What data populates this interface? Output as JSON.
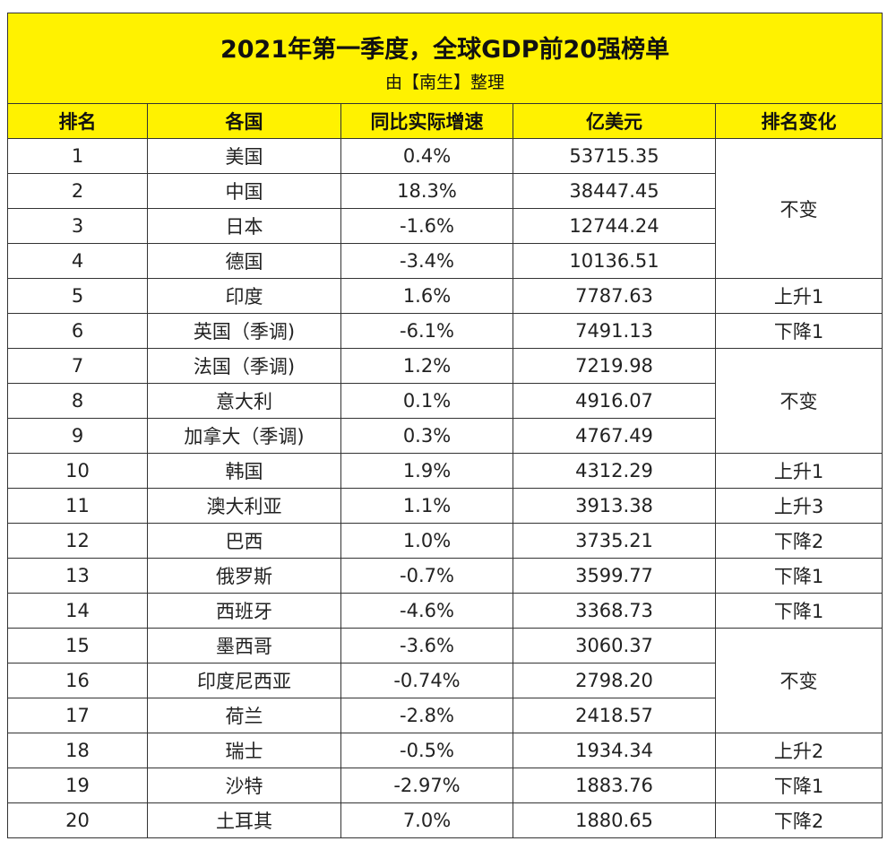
{
  "title": "2021年第一季度，全球GDP前20强榜单",
  "subtitle": "由【南生】整理",
  "headers": [
    "排名",
    "各国",
    "同比实际增速",
    "亿美元",
    "排名变化"
  ],
  "rows": [
    {
      "rank": "1",
      "country": "美国",
      "growth": "0.4%",
      "gdp": "53715.35"
    },
    {
      "rank": "2",
      "country": "中国",
      "growth": "18.3%",
      "gdp": "38447.45"
    },
    {
      "rank": "3",
      "country": "日本",
      "growth": "-1.6%",
      "gdp": "12744.24"
    },
    {
      "rank": "4",
      "country": "德国",
      "growth": "-3.4%",
      "gdp": "10136.51"
    },
    {
      "rank": "5",
      "country": "印度",
      "growth": "1.6%",
      "gdp": "7787.63"
    },
    {
      "rank": "6",
      "country": "英国（季调)",
      "growth": "-6.1%",
      "gdp": "7491.13"
    },
    {
      "rank": "7",
      "country": "法国（季调)",
      "growth": "1.2%",
      "gdp": "7219.98"
    },
    {
      "rank": "8",
      "country": "意大利",
      "growth": "0.1%",
      "gdp": "4916.07"
    },
    {
      "rank": "9",
      "country": "加拿大（季调)",
      "growth": "0.3%",
      "gdp": "4767.49"
    },
    {
      "rank": "10",
      "country": "韩国",
      "growth": "1.9%",
      "gdp": "4312.29"
    },
    {
      "rank": "11",
      "country": "澳大利亚",
      "growth": "1.1%",
      "gdp": "3913.38"
    },
    {
      "rank": "12",
      "country": "巴西",
      "growth": "1.0%",
      "gdp": "3735.21"
    },
    {
      "rank": "13",
      "country": "俄罗斯",
      "growth": "-0.7%",
      "gdp": "3599.77"
    },
    {
      "rank": "14",
      "country": "西班牙",
      "growth": "-4.6%",
      "gdp": "3368.73"
    },
    {
      "rank": "15",
      "country": "墨西哥",
      "growth": "-3.6%",
      "gdp": "3060.37"
    },
    {
      "rank": "16",
      "country": "印度尼西亚",
      "growth": "-0.74%",
      "gdp": "2798.20"
    },
    {
      "rank": "17",
      "country": "荷兰",
      "growth": "-2.8%",
      "gdp": "2418.57"
    },
    {
      "rank": "18",
      "country": "瑞士",
      "growth": "-0.5%",
      "gdp": "1934.34"
    },
    {
      "rank": "19",
      "country": "沙特",
      "growth": "-2.97%",
      "gdp": "1883.76"
    },
    {
      "rank": "20",
      "country": "土耳其",
      "growth": "7.0%",
      "gdp": "1880.65"
    }
  ],
  "changes": [
    {
      "label": "不变",
      "span": 4
    },
    {
      "label": "上升1",
      "span": 1
    },
    {
      "label": "下降1",
      "span": 1
    },
    {
      "label": "不变",
      "span": 3
    },
    {
      "label": "上升1",
      "span": 1
    },
    {
      "label": "上升3",
      "span": 1
    },
    {
      "label": "下降2",
      "span": 1
    },
    {
      "label": "下降1",
      "span": 1
    },
    {
      "label": "下降1",
      "span": 1
    },
    {
      "label": "不变",
      "span": 3
    },
    {
      "label": "上升2",
      "span": 1
    },
    {
      "label": "下降1",
      "span": 1
    },
    {
      "label": "下降2",
      "span": 1
    }
  ]
}
